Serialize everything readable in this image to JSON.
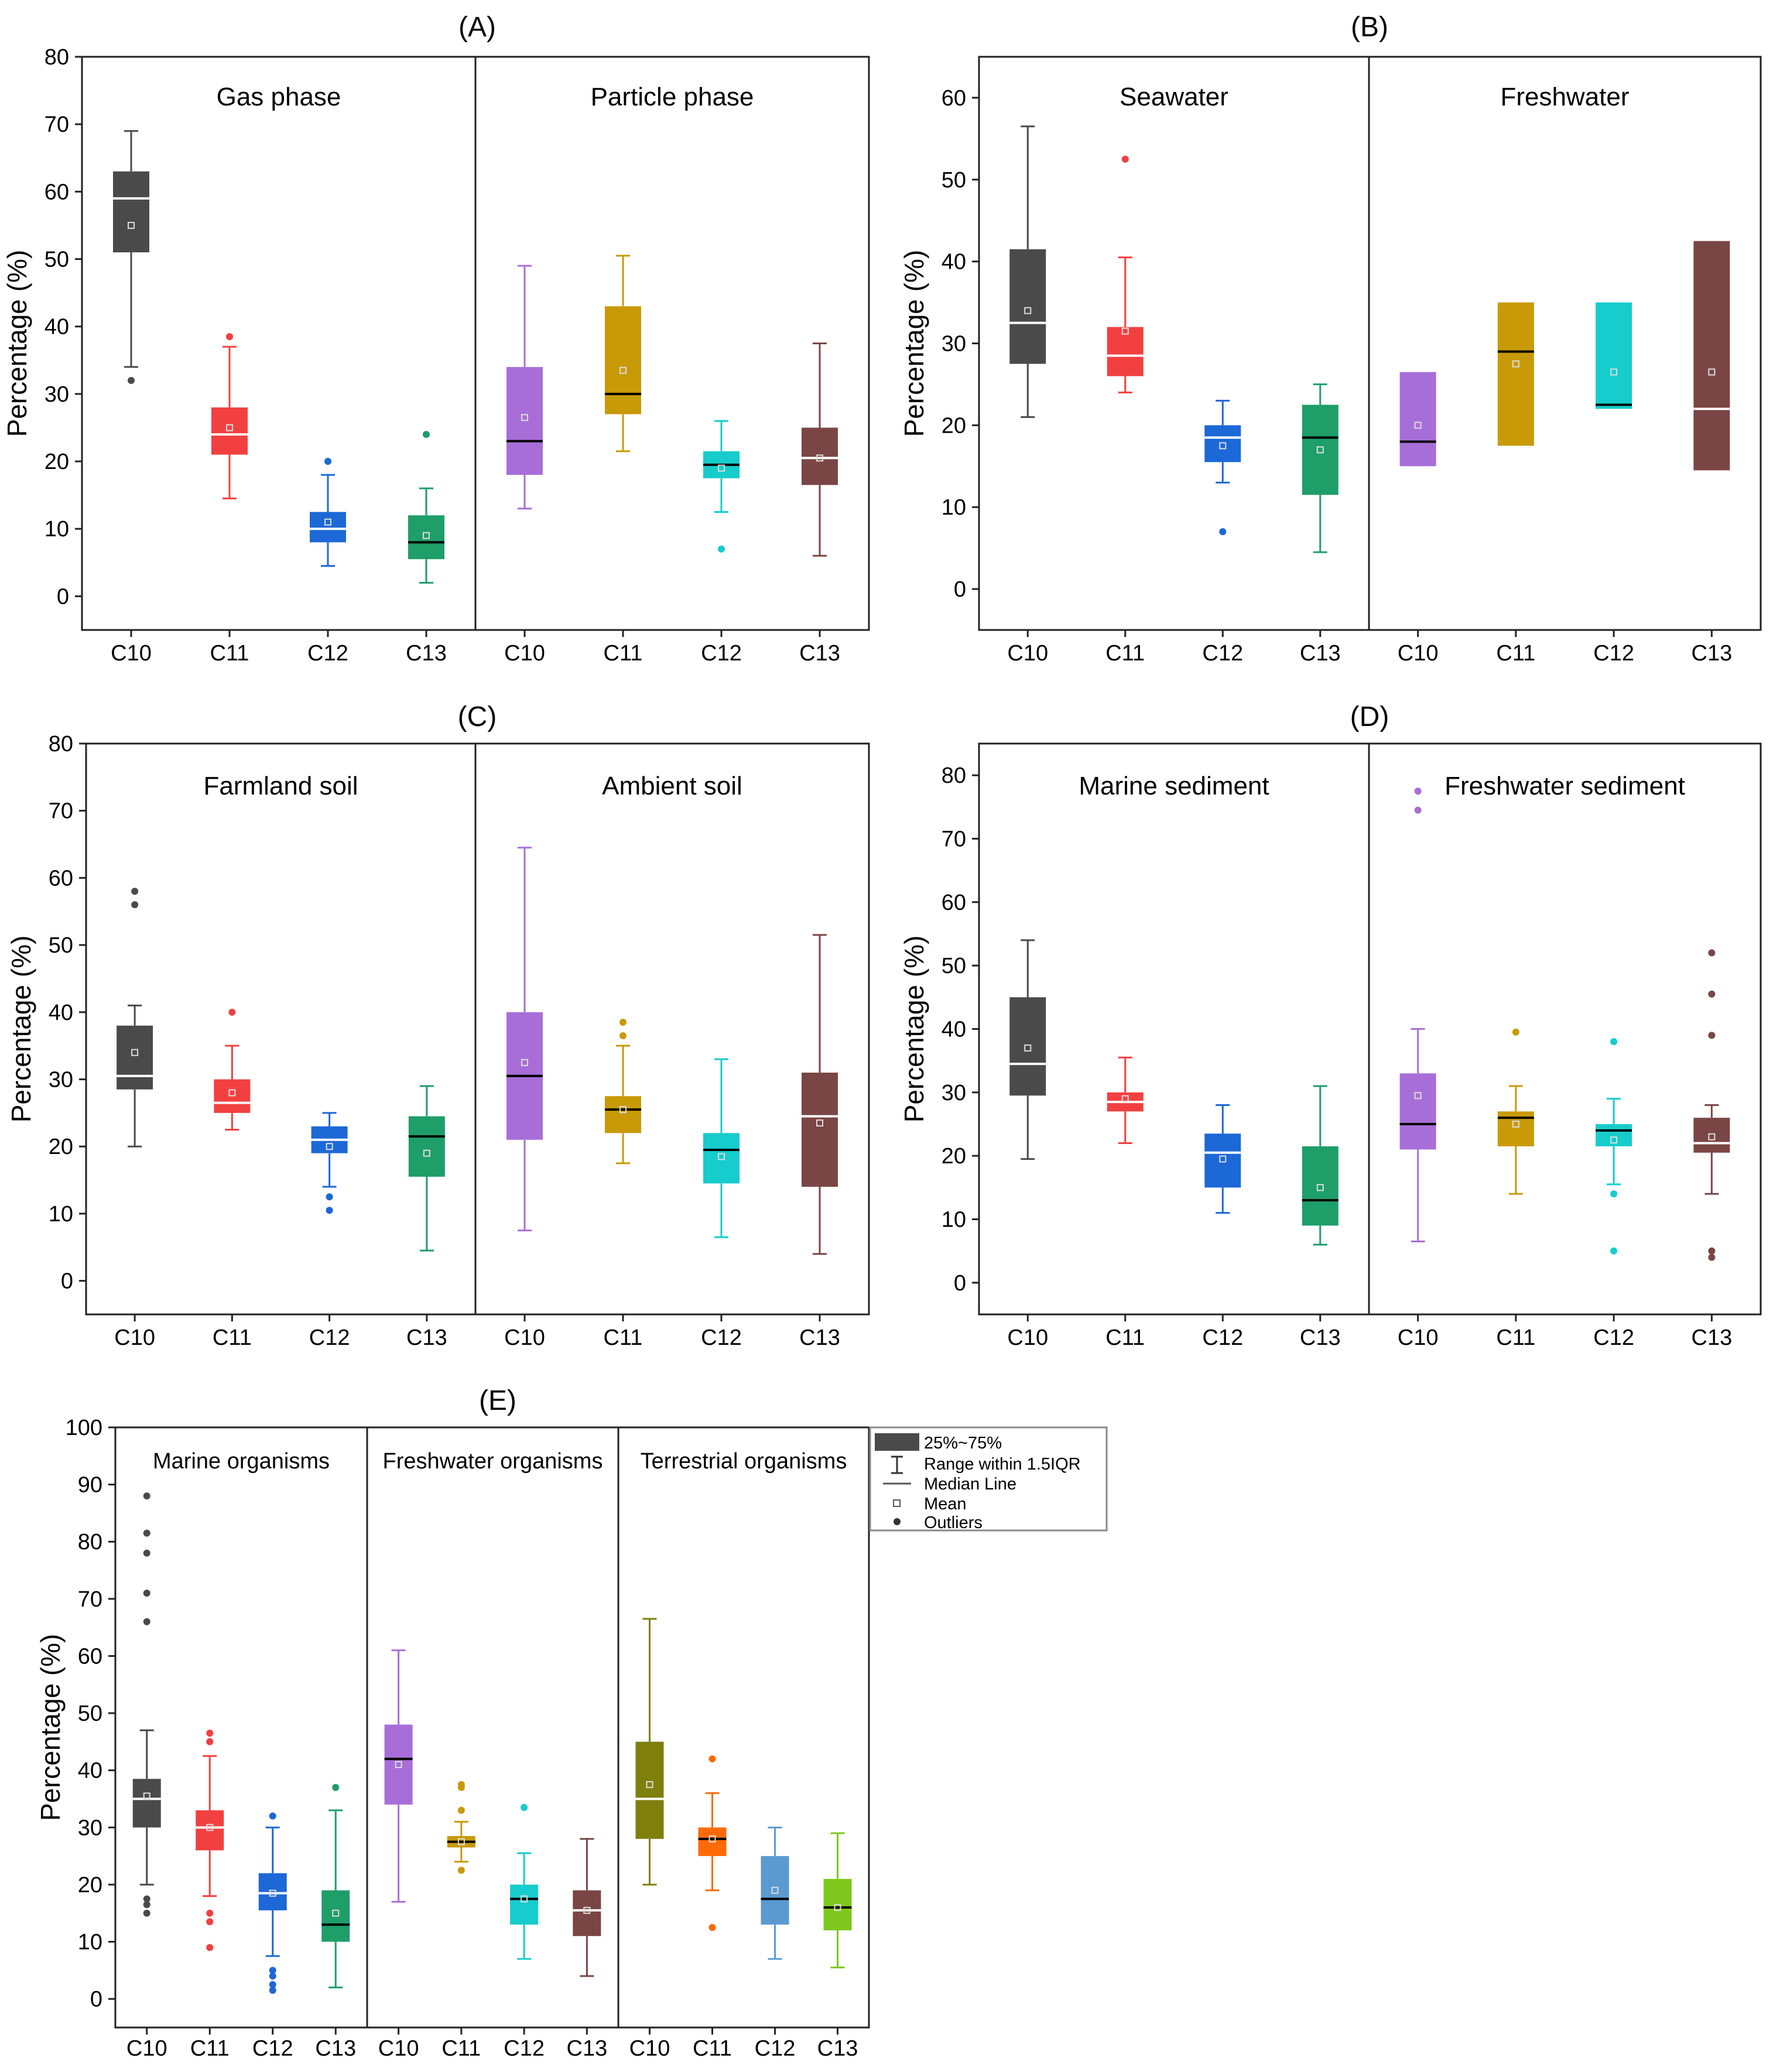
{
  "figure": {
    "legend": {
      "box_label": "25%~75%",
      "range_label": "Range within 1.5IQR",
      "median_label": "Median Line",
      "mean_label": "Mean",
      "outlier_label": "Outliers"
    }
  },
  "chart_data": [
    {
      "type": "box",
      "panel": "(A)",
      "ylabel": "Percentage (%)",
      "ylim": [
        -5,
        80
      ],
      "yticks": [
        0,
        10,
        20,
        30,
        40,
        50,
        60,
        70,
        80
      ],
      "groups": [
        {
          "name": "Gas phase",
          "boxes": [
            {
              "cat": "C10",
              "color": "#4a4a4a",
              "q1": 51,
              "med": 59,
              "q3": 63,
              "wlo": 34,
              "whi": 69,
              "mean": 55,
              "medColor": "#ffffff",
              "out": [
                32
              ]
            },
            {
              "cat": "C11",
              "color": "#f24040",
              "q1": 21,
              "med": 24,
              "q3": 28,
              "wlo": 14.5,
              "whi": 37,
              "mean": 25,
              "medColor": "#ffffff",
              "out": [
                38.5
              ]
            },
            {
              "cat": "C12",
              "color": "#1c68d6",
              "q1": 8,
              "med": 10,
              "q3": 12.5,
              "wlo": 4.5,
              "whi": 18,
              "mean": 11,
              "medColor": "#ffffff",
              "out": [
                20
              ]
            },
            {
              "cat": "C13",
              "color": "#1e9e68",
              "q1": 5.5,
              "med": 8,
              "q3": 12,
              "wlo": 2,
              "whi": 16,
              "mean": 9,
              "medColor": "#000000",
              "out": [
                24
              ]
            }
          ]
        },
        {
          "name": "Particle phase",
          "boxes": [
            {
              "cat": "C10",
              "color": "#a86ed8",
              "q1": 18,
              "med": 23,
              "q3": 34,
              "wlo": 13,
              "whi": 49,
              "mean": 26.5,
              "medColor": "#000000",
              "out": []
            },
            {
              "cat": "C11",
              "color": "#c89a08",
              "q1": 27,
              "med": 30,
              "q3": 43,
              "wlo": 21.5,
              "whi": 50.5,
              "mean": 33.5,
              "medColor": "#000000",
              "out": []
            },
            {
              "cat": "C12",
              "color": "#17cccc",
              "q1": 17.5,
              "med": 19.5,
              "q3": 21.5,
              "wlo": 12.5,
              "whi": 26,
              "mean": 19,
              "medColor": "#000000",
              "out": [
                7
              ]
            },
            {
              "cat": "C13",
              "color": "#7a4545",
              "q1": 16.5,
              "med": 20.5,
              "q3": 25,
              "wlo": 6,
              "whi": 37.5,
              "mean": 20.5,
              "medColor": "#ffffff",
              "out": []
            }
          ]
        }
      ]
    },
    {
      "type": "box",
      "panel": "(B)",
      "ylabel": "Percentage (%)",
      "ylim": [
        -5,
        65
      ],
      "yticks": [
        0,
        10,
        20,
        30,
        40,
        50,
        60
      ],
      "groups": [
        {
          "name": "Seawater",
          "boxes": [
            {
              "cat": "C10",
              "color": "#4a4a4a",
              "q1": 27.5,
              "med": 32.5,
              "q3": 41.5,
              "wlo": 21,
              "whi": 56.5,
              "mean": 34,
              "medColor": "#ffffff",
              "out": []
            },
            {
              "cat": "C11",
              "color": "#f24040",
              "q1": 26,
              "med": 28.5,
              "q3": 32,
              "wlo": 24,
              "whi": 40.5,
              "mean": 31.5,
              "medColor": "#ffffff",
              "out": [
                52.5
              ]
            },
            {
              "cat": "C12",
              "color": "#1c68d6",
              "q1": 15.5,
              "med": 18.5,
              "q3": 20,
              "wlo": 13,
              "whi": 23,
              "mean": 17.5,
              "medColor": "#ffffff",
              "out": [
                7
              ]
            },
            {
              "cat": "C13",
              "color": "#1e9e68",
              "q1": 11.5,
              "med": 18.5,
              "q3": 22.5,
              "wlo": 4.5,
              "whi": 25,
              "mean": 17,
              "medColor": "#000000",
              "out": []
            }
          ]
        },
        {
          "name": "Freshwater",
          "boxes": [
            {
              "cat": "C10",
              "color": "#a86ed8",
              "q1": 15,
              "med": 18,
              "q3": 26.5,
              "wlo": null,
              "whi": null,
              "mean": 20,
              "medColor": "#000000",
              "out": []
            },
            {
              "cat": "C11",
              "color": "#c89a08",
              "q1": 17.5,
              "med": 29,
              "q3": 35,
              "wlo": null,
              "whi": null,
              "mean": 27.5,
              "medColor": "#000000",
              "out": []
            },
            {
              "cat": "C12",
              "color": "#17cccc",
              "q1": 22,
              "med": 22.5,
              "q3": 35,
              "wlo": null,
              "whi": null,
              "mean": 26.5,
              "medColor": "#000000",
              "out": []
            },
            {
              "cat": "C13",
              "color": "#7a4545",
              "q1": 14.5,
              "med": 22,
              "q3": 42.5,
              "wlo": null,
              "whi": null,
              "mean": 26.5,
              "medColor": "#ffffff",
              "out": []
            }
          ]
        }
      ]
    },
    {
      "type": "box",
      "panel": "(C)",
      "ylabel": "Percentage (%)",
      "ylim": [
        -5,
        80
      ],
      "yticks": [
        0,
        10,
        20,
        30,
        40,
        50,
        60,
        70,
        80
      ],
      "groups": [
        {
          "name": "Farmland soil",
          "boxes": [
            {
              "cat": "C10",
              "color": "#4a4a4a",
              "q1": 28.5,
              "med": 30.5,
              "q3": 38,
              "wlo": 20,
              "whi": 41,
              "mean": 34,
              "medColor": "#ffffff",
              "out": [
                56,
                58
              ]
            },
            {
              "cat": "C11",
              "color": "#f24040",
              "q1": 25,
              "med": 26.5,
              "q3": 30,
              "wlo": 22.5,
              "whi": 35,
              "mean": 28,
              "medColor": "#ffffff",
              "out": [
                40
              ]
            },
            {
              "cat": "C12",
              "color": "#1c68d6",
              "q1": 19,
              "med": 21,
              "q3": 23,
              "wlo": 14,
              "whi": 25,
              "mean": 20,
              "medColor": "#ffffff",
              "out": [
                12.5,
                10.5
              ]
            },
            {
              "cat": "C13",
              "color": "#1e9e68",
              "q1": 15.5,
              "med": 21.5,
              "q3": 24.5,
              "wlo": 4.5,
              "whi": 29,
              "mean": 19,
              "medColor": "#000000",
              "out": []
            }
          ]
        },
        {
          "name": "Ambient soil",
          "boxes": [
            {
              "cat": "C10",
              "color": "#a86ed8",
              "q1": 21,
              "med": 30.5,
              "q3": 40,
              "wlo": 7.5,
              "whi": 64.5,
              "mean": 32.5,
              "medColor": "#000000",
              "out": []
            },
            {
              "cat": "C11",
              "color": "#c89a08",
              "q1": 22,
              "med": 25.5,
              "q3": 27.5,
              "wlo": 17.5,
              "whi": 35,
              "mean": 25.5,
              "medColor": "#000000",
              "out": [
                36.5,
                38.5
              ]
            },
            {
              "cat": "C12",
              "color": "#17cccc",
              "q1": 14.5,
              "med": 19.5,
              "q3": 22,
              "wlo": 6.5,
              "whi": 33,
              "mean": 18.5,
              "medColor": "#000000",
              "out": []
            },
            {
              "cat": "C13",
              "color": "#7a4545",
              "q1": 14,
              "med": 24.5,
              "q3": 31,
              "wlo": 4,
              "whi": 51.5,
              "mean": 23.5,
              "medColor": "#ffffff",
              "out": []
            }
          ]
        }
      ]
    },
    {
      "type": "box",
      "panel": "(D)",
      "ylabel": "Percentage (%)",
      "ylim": [
        -5,
        85
      ],
      "yticks": [
        0,
        10,
        20,
        30,
        40,
        50,
        60,
        70,
        80
      ],
      "groups": [
        {
          "name": "Marine sediment",
          "boxes": [
            {
              "cat": "C10",
              "color": "#4a4a4a",
              "q1": 29.5,
              "med": 34.5,
              "q3": 45,
              "wlo": 19.5,
              "whi": 54,
              "mean": 37,
              "medColor": "#ffffff",
              "out": []
            },
            {
              "cat": "C11",
              "color": "#f24040",
              "q1": 27,
              "med": 28.5,
              "q3": 30,
              "wlo": 22,
              "whi": 35.5,
              "mean": 29,
              "medColor": "#ffffff",
              "out": []
            },
            {
              "cat": "C12",
              "color": "#1c68d6",
              "q1": 15,
              "med": 20.5,
              "q3": 23.5,
              "wlo": 11,
              "whi": 28,
              "mean": 19.5,
              "medColor": "#ffffff",
              "out": []
            },
            {
              "cat": "C13",
              "color": "#1e9e68",
              "q1": 9,
              "med": 13,
              "q3": 21.5,
              "wlo": 6,
              "whi": 31,
              "mean": 15,
              "medColor": "#000000",
              "out": []
            }
          ]
        },
        {
          "name": "Freshwater sediment",
          "boxes": [
            {
              "cat": "C10",
              "color": "#a86ed8",
              "q1": 21,
              "med": 25,
              "q3": 33,
              "wlo": 6.5,
              "whi": 40,
              "mean": 29.5,
              "medColor": "#000000",
              "out": [
                74.5,
                77.5
              ]
            },
            {
              "cat": "C11",
              "color": "#c89a08",
              "q1": 21.5,
              "med": 26,
              "q3": 27,
              "wlo": 14,
              "whi": 31,
              "mean": 25,
              "medColor": "#000000",
              "out": [
                39.5
              ]
            },
            {
              "cat": "C12",
              "color": "#17cccc",
              "q1": 21.5,
              "med": 24,
              "q3": 25,
              "wlo": 15.5,
              "whi": 29,
              "mean": 22.5,
              "medColor": "#000000",
              "out": [
                38,
                14,
                5
              ]
            },
            {
              "cat": "C13",
              "color": "#7a4545",
              "q1": 20.5,
              "med": 22,
              "q3": 26,
              "wlo": 14,
              "whi": 28,
              "mean": 23,
              "medColor": "#ffffff",
              "out": [
                52,
                45.5,
                39,
                5,
                4
              ]
            }
          ]
        }
      ]
    },
    {
      "type": "box",
      "panel": "(E)",
      "ylabel": "Percentage (%)",
      "ylim": [
        -5,
        100
      ],
      "yticks": [
        0,
        10,
        20,
        30,
        40,
        50,
        60,
        70,
        80,
        90,
        100
      ],
      "groups": [
        {
          "name": "Marine organisms",
          "boxes": [
            {
              "cat": "C10",
              "color": "#4a4a4a",
              "q1": 30,
              "med": 35,
              "q3": 38.5,
              "wlo": 20,
              "whi": 47,
              "mean": 35.5,
              "medColor": "#ffffff",
              "out": [
                88,
                81.5,
                78,
                71,
                66,
                17.5,
                16.5,
                15
              ]
            },
            {
              "cat": "C11",
              "color": "#f24040",
              "q1": 26,
              "med": 30,
              "q3": 33,
              "wlo": 18,
              "whi": 42.5,
              "mean": 30,
              "medColor": "#ffffff",
              "out": [
                46.5,
                45,
                15,
                13.5,
                9
              ]
            },
            {
              "cat": "C12",
              "color": "#1c68d6",
              "q1": 15.5,
              "med": 18.5,
              "q3": 22,
              "wlo": 7.5,
              "whi": 30,
              "mean": 18.5,
              "medColor": "#ffffff",
              "out": [
                32,
                5,
                4,
                2.5,
                1.5
              ]
            },
            {
              "cat": "C13",
              "color": "#1e9e68",
              "q1": 10,
              "med": 13,
              "q3": 19,
              "wlo": 2,
              "whi": 33,
              "mean": 15,
              "medColor": "#000000",
              "out": [
                37
              ]
            }
          ]
        },
        {
          "name": "Freshwater organisms",
          "boxes": [
            {
              "cat": "C10",
              "color": "#a86ed8",
              "q1": 34,
              "med": 42,
              "q3": 48,
              "wlo": 17,
              "whi": 61,
              "mean": 41,
              "medColor": "#000000",
              "out": []
            },
            {
              "cat": "C11",
              "color": "#c89a08",
              "q1": 26.5,
              "med": 27.5,
              "q3": 28.5,
              "wlo": 24,
              "whi": 31,
              "mean": 27.5,
              "medColor": "#000000",
              "out": [
                37.5,
                37,
                33,
                22.5
              ]
            },
            {
              "cat": "C12",
              "color": "#17cccc",
              "q1": 13,
              "med": 17.5,
              "q3": 20,
              "wlo": 7,
              "whi": 25.5,
              "mean": 17.5,
              "medColor": "#000000",
              "out": [
                33.5
              ]
            },
            {
              "cat": "C13",
              "color": "#7a4545",
              "q1": 11,
              "med": 15.5,
              "q3": 19,
              "wlo": 4,
              "whi": 28,
              "mean": 15.5,
              "medColor": "#ffffff",
              "out": []
            }
          ]
        },
        {
          "name": "Terrestrial organisms",
          "boxes": [
            {
              "cat": "C10",
              "color": "#7f7f0e",
              "q1": 28,
              "med": 35,
              "q3": 45,
              "wlo": 20,
              "whi": 66.5,
              "mean": 37.5,
              "medColor": "#ffffff",
              "out": []
            },
            {
              "cat": "C11",
              "color": "#ff6a08",
              "q1": 25,
              "med": 28,
              "q3": 30,
              "wlo": 19,
              "whi": 36,
              "mean": 28,
              "medColor": "#000000",
              "out": [
                42,
                12.5
              ]
            },
            {
              "cat": "C12",
              "color": "#5b9ad0",
              "q1": 13,
              "med": 17.5,
              "q3": 25,
              "wlo": 7,
              "whi": 30,
              "mean": 19,
              "medColor": "#000000",
              "out": []
            },
            {
              "cat": "C13",
              "color": "#7ec81e",
              "q1": 12,
              "med": 16,
              "q3": 21,
              "wlo": 5.5,
              "whi": 29,
              "mean": 16,
              "medColor": "#000000",
              "out": []
            }
          ]
        }
      ]
    }
  ]
}
